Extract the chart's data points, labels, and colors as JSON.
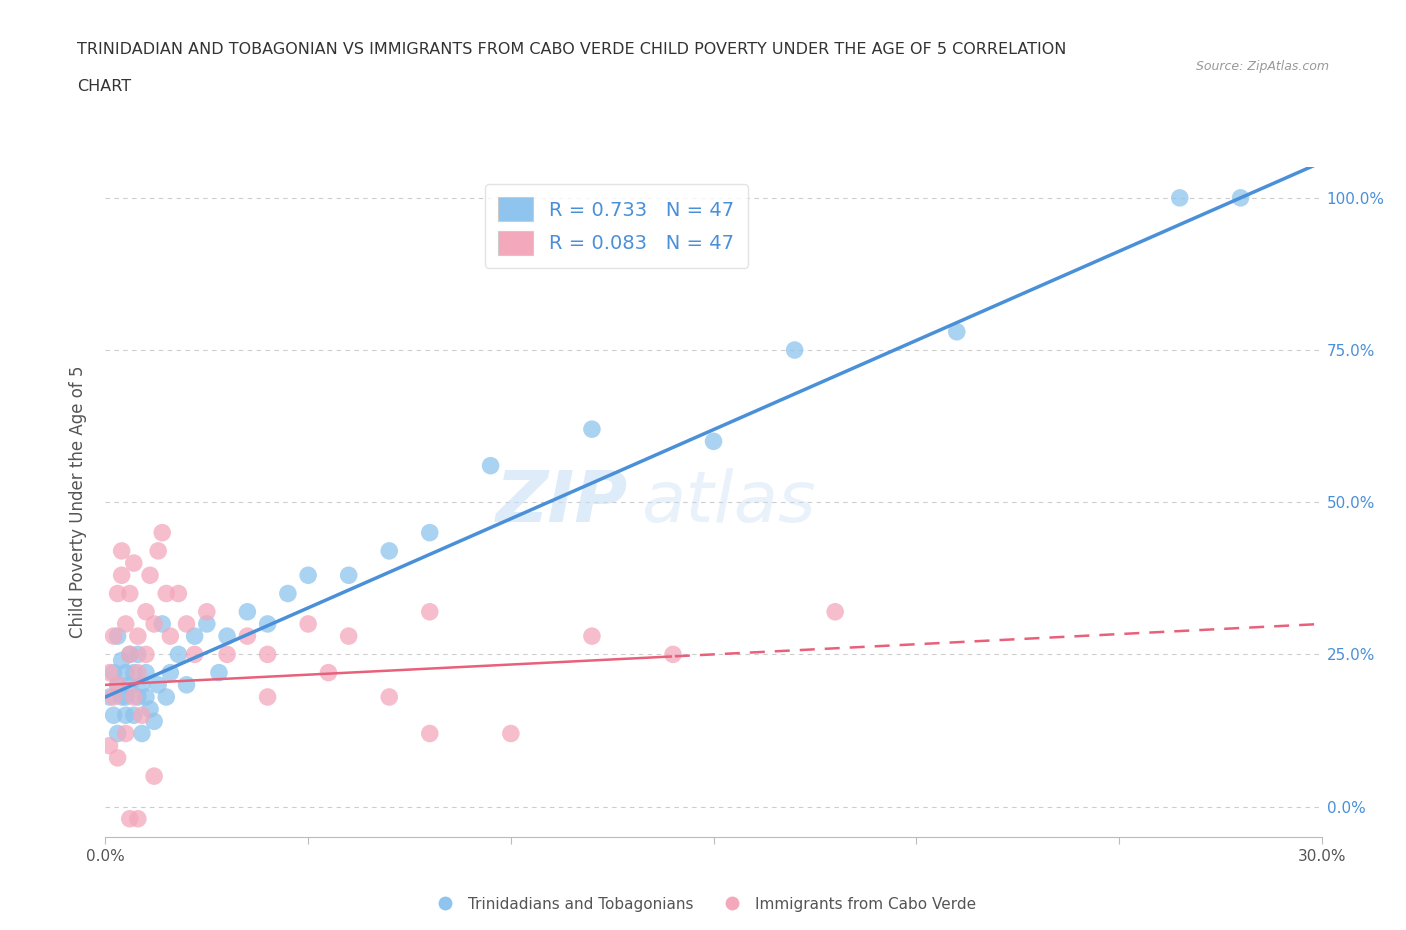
{
  "title_line1": "TRINIDADIAN AND TOBAGONIAN VS IMMIGRANTS FROM CABO VERDE CHILD POVERTY UNDER THE AGE OF 5 CORRELATION",
  "title_line2": "CHART",
  "source_text": "Source: ZipAtlas.com",
  "ylabel": "Child Poverty Under the Age of 5",
  "watermark_zip": "ZIP",
  "watermark_atlas": "atlas",
  "xlim": [
    0.0,
    0.3
  ],
  "ylim": [
    -0.05,
    1.05
  ],
  "ytick_positions": [
    0.0,
    0.25,
    0.5,
    0.75,
    1.0
  ],
  "ytick_labels": [
    "0.0%",
    "25.0%",
    "50.0%",
    "75.0%",
    "100.0%"
  ],
  "xtick_positions": [
    0.0,
    0.05,
    0.1,
    0.15,
    0.2,
    0.25,
    0.3
  ],
  "xtick_labels": [
    "0.0%",
    "",
    "",
    "",
    "",
    "",
    "30.0%"
  ],
  "R_blue": 0.733,
  "R_pink": 0.083,
  "N_blue": 47,
  "N_pink": 47,
  "blue_color": "#8ec4ed",
  "pink_color": "#f4a8bb",
  "blue_line_color": "#4a90d9",
  "pink_line_color": "#e8607a",
  "pink_line_dash": [
    6,
    4
  ],
  "legend_label_blue": "Trinidadians and Tobagonians",
  "legend_label_pink": "Immigrants from Cabo Verde",
  "blue_scatter_x": [
    0.001,
    0.002,
    0.002,
    0.003,
    0.003,
    0.003,
    0.004,
    0.004,
    0.005,
    0.005,
    0.005,
    0.006,
    0.006,
    0.007,
    0.007,
    0.008,
    0.008,
    0.009,
    0.009,
    0.01,
    0.01,
    0.011,
    0.012,
    0.013,
    0.014,
    0.015,
    0.016,
    0.018,
    0.02,
    0.022,
    0.025,
    0.028,
    0.03,
    0.035,
    0.04,
    0.045,
    0.05,
    0.06,
    0.07,
    0.08,
    0.095,
    0.12,
    0.15,
    0.17,
    0.21,
    0.265,
    0.28
  ],
  "blue_scatter_y": [
    0.18,
    0.22,
    0.15,
    0.2,
    0.28,
    0.12,
    0.18,
    0.24,
    0.15,
    0.22,
    0.18,
    0.25,
    0.2,
    0.15,
    0.22,
    0.18,
    0.25,
    0.12,
    0.2,
    0.18,
    0.22,
    0.16,
    0.14,
    0.2,
    0.3,
    0.18,
    0.22,
    0.25,
    0.2,
    0.28,
    0.3,
    0.22,
    0.28,
    0.32,
    0.3,
    0.35,
    0.38,
    0.38,
    0.42,
    0.45,
    0.56,
    0.62,
    0.6,
    0.75,
    0.78,
    1.0,
    1.0
  ],
  "pink_scatter_x": [
    0.001,
    0.001,
    0.002,
    0.002,
    0.003,
    0.003,
    0.003,
    0.004,
    0.004,
    0.005,
    0.005,
    0.006,
    0.006,
    0.007,
    0.007,
    0.008,
    0.008,
    0.009,
    0.01,
    0.01,
    0.011,
    0.012,
    0.013,
    0.014,
    0.015,
    0.016,
    0.018,
    0.02,
    0.022,
    0.025,
    0.03,
    0.035,
    0.04,
    0.05,
    0.055,
    0.06,
    0.07,
    0.08,
    0.1,
    0.12,
    0.006,
    0.008,
    0.012,
    0.04,
    0.08,
    0.14,
    0.18
  ],
  "pink_scatter_y": [
    0.1,
    0.22,
    0.18,
    0.28,
    0.35,
    0.2,
    0.08,
    0.38,
    0.42,
    0.3,
    0.12,
    0.35,
    0.25,
    0.4,
    0.18,
    0.28,
    0.22,
    0.15,
    0.25,
    0.32,
    0.38,
    0.3,
    0.42,
    0.45,
    0.35,
    0.28,
    0.35,
    0.3,
    0.25,
    0.32,
    0.25,
    0.28,
    0.25,
    0.3,
    0.22,
    0.28,
    0.18,
    0.32,
    0.12,
    0.28,
    -0.02,
    -0.02,
    0.05,
    0.18,
    0.12,
    0.25,
    0.32
  ],
  "grid_color": "#cccccc",
  "background_color": "#ffffff"
}
